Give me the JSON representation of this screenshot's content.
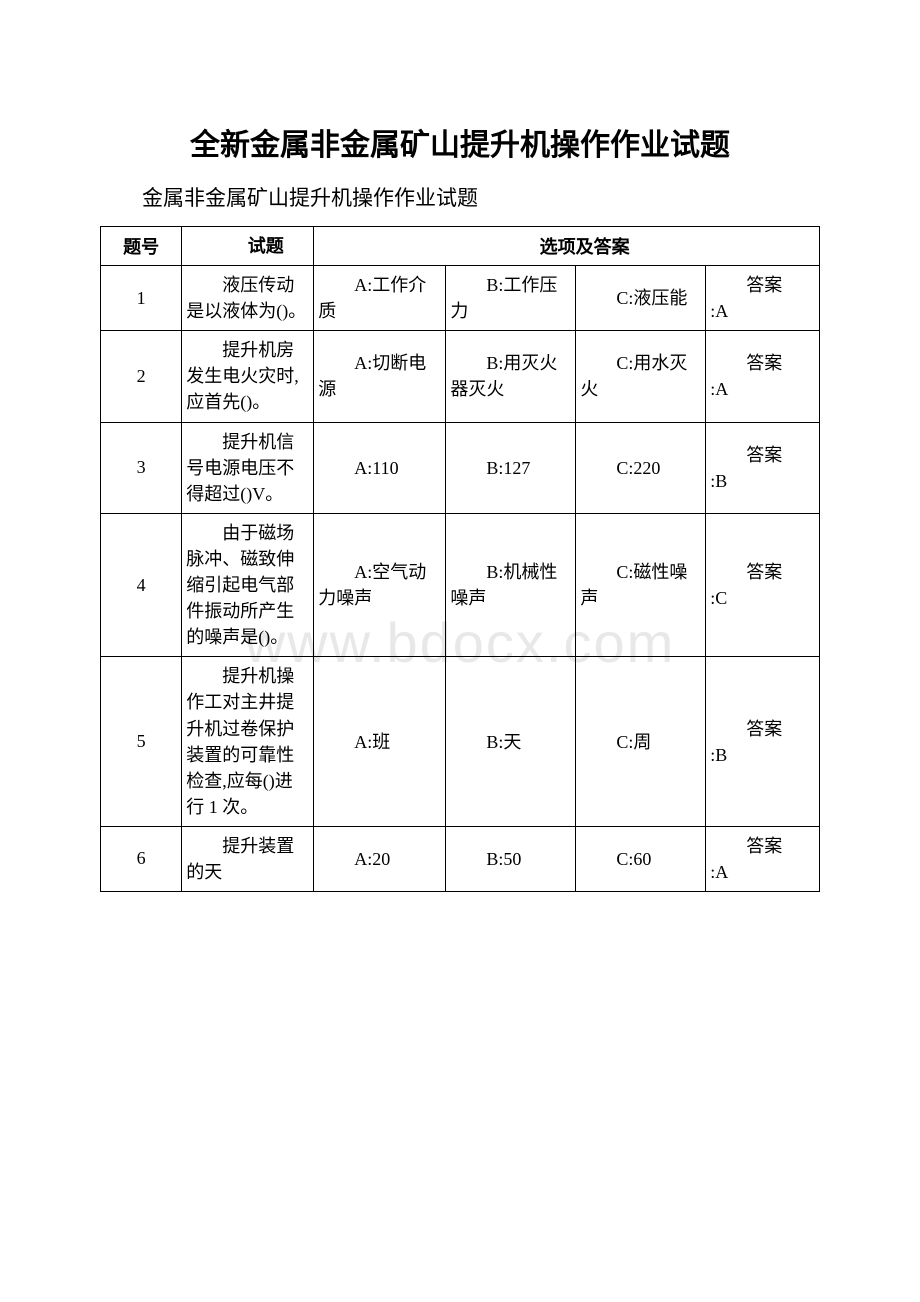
{
  "title": "全新金属非金属矿山提升机操作作业试题",
  "subtitle": "金属非金属矿山提升机操作作业试题",
  "watermark": "www.bdocx.com",
  "headers": {
    "num": "题号",
    "question": "试题",
    "options": "选项及答案"
  },
  "answer_prefix": "答案",
  "rows": [
    {
      "num": "1",
      "question": "液压传动是以液体为()。",
      "optA": "A:工作介质",
      "optB": "B:工作压力",
      "optC": "C:液压能",
      "answer": ":A"
    },
    {
      "num": "2",
      "question": "提升机房发生电火灾时,应首先()。",
      "optA": "A:切断电源",
      "optB": "B:用灭火器灭火",
      "optC": "C:用水灭火",
      "answer": ":A"
    },
    {
      "num": "3",
      "question": "提升机信号电源电压不得超过()V。",
      "optA": "A:110",
      "optB": "B:127",
      "optC": "C:220",
      "answer": ":B"
    },
    {
      "num": "4",
      "question": "由于磁场脉冲、磁致伸缩引起电气部件振动所产生的噪声是()。",
      "optA": "A:空气动力噪声",
      "optB": "B:机械性噪声",
      "optC": "C:磁性噪声",
      "answer": ":C"
    },
    {
      "num": "5",
      "question": "提升机操作工对主井提升机过卷保护装置的可靠性检查,应每()进行 1 次。",
      "optA": "A:班",
      "optB": "B:天",
      "optC": "C:周",
      "answer": ":B"
    },
    {
      "num": "6",
      "question": "提升装置的天",
      "optA": "A:20",
      "optB": "B:50",
      "optC": "C:60",
      "answer": ":A"
    }
  ]
}
